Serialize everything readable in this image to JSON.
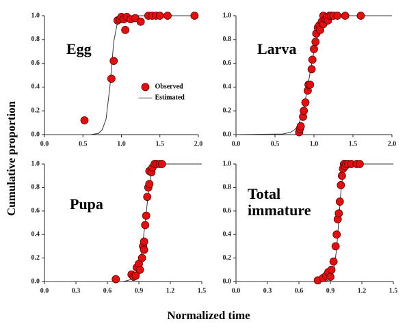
{
  "xlabel": "Normalized time",
  "ylabel": "Cumulative proportion",
  "chart_data": [
    {
      "type": "scatter",
      "label": "Egg",
      "legend": "center-right",
      "xlim": [
        0,
        2
      ],
      "ylim": [
        0,
        1
      ],
      "xticks": [
        {
          "value": 0,
          "label": "0.0"
        },
        {
          "value": 0.5,
          "label": "0.5"
        },
        {
          "value": 1,
          "label": "1.0"
        },
        {
          "value": 1.5,
          "label": "1.5"
        },
        {
          "value": 2,
          "label": "2.0"
        }
      ],
      "yticks": [
        {
          "value": 0,
          "label": "0.0"
        },
        {
          "value": 0.2,
          "label": "0.2"
        },
        {
          "value": 0.4,
          "label": "0.4"
        },
        {
          "value": 0.6,
          "label": "0.6"
        },
        {
          "value": 0.8,
          "label": "0.8"
        },
        {
          "value": 1,
          "label": "1.0"
        }
      ],
      "series": [
        {
          "name": "Observed",
          "color": "#e01010",
          "x": [
            0.52,
            0.87,
            0.9,
            0.95,
            0.98,
            1.0,
            1.03,
            1.05,
            1.07,
            1.12,
            1.18,
            1.25,
            1.35,
            1.4,
            1.45,
            1.5,
            1.6,
            1.95
          ],
          "values": [
            0.12,
            0.47,
            0.62,
            0.96,
            0.97,
            0.99,
            0.97,
            0.88,
            0.99,
            0.97,
            0.98,
            0.95,
            1.0,
            1.0,
            1.0,
            1.0,
            1.0,
            1.0
          ]
        },
        {
          "name": "Estimated",
          "color": "#333333",
          "x": [
            0,
            0.6,
            0.7,
            0.75,
            0.8,
            0.85,
            0.9,
            0.95,
            1.0,
            1.05,
            2.0
          ],
          "values": [
            0,
            0,
            0.01,
            0.04,
            0.13,
            0.4,
            0.78,
            0.95,
            0.99,
            1,
            1
          ]
        }
      ]
    },
    {
      "type": "scatter",
      "label": "Larva",
      "xlim": [
        0,
        2
      ],
      "ylim": [
        0,
        1
      ],
      "xticks": [
        {
          "value": 0,
          "label": "0.0"
        },
        {
          "value": 0.5,
          "label": "0.5"
        },
        {
          "value": 1,
          "label": "1.0"
        },
        {
          "value": 1.5,
          "label": "1.5"
        },
        {
          "value": 2,
          "label": "2.0"
        }
      ],
      "yticks": [
        {
          "value": 0,
          "label": "0.0"
        },
        {
          "value": 0.2,
          "label": "0.2"
        },
        {
          "value": 0.4,
          "label": "0.4"
        },
        {
          "value": 0.6,
          "label": "0.6"
        },
        {
          "value": 0.8,
          "label": "0.8"
        },
        {
          "value": 1,
          "label": "1.0"
        }
      ],
      "series": [
        {
          "name": "Observed",
          "color": "#e01010",
          "x": [
            0.81,
            0.82,
            0.83,
            0.86,
            0.87,
            0.89,
            0.92,
            0.93,
            0.95,
            0.97,
            0.98,
            1.0,
            1.02,
            1.03,
            1.05,
            1.07,
            1.08,
            1.1,
            1.12,
            1.12,
            1.15,
            1.17,
            1.18,
            1.2,
            1.22,
            1.25,
            1.3,
            1.4,
            1.6
          ],
          "values": [
            0.02,
            0.05,
            0.07,
            0.15,
            0.2,
            0.27,
            0.37,
            0.42,
            0.42,
            0.55,
            0.63,
            0.72,
            0.78,
            0.85,
            0.9,
            0.92,
            0.88,
            0.95,
            0.93,
            1.0,
            0.97,
            0.99,
            0.96,
            1.0,
            1.0,
            1.0,
            1.0,
            1.0,
            1.0
          ]
        },
        {
          "name": "Estimated",
          "color": "#333333",
          "x": [
            0,
            0.6,
            0.7,
            0.75,
            0.8,
            0.85,
            0.9,
            0.95,
            1.0,
            1.05,
            1.1,
            1.15,
            1.2,
            1.3,
            2.0
          ],
          "values": [
            0,
            0.005,
            0.02,
            0.04,
            0.08,
            0.17,
            0.33,
            0.52,
            0.7,
            0.84,
            0.93,
            0.97,
            0.99,
            1,
            1
          ]
        }
      ]
    },
    {
      "type": "scatter",
      "label": "Pupa",
      "xlim": [
        0,
        1.5
      ],
      "ylim": [
        0,
        1
      ],
      "xticks": [
        {
          "value": 0,
          "label": "0.0"
        },
        0.3,
        0.6,
        0.9,
        1.2,
        1.5
      ],
      "yticks": [
        {
          "value": 0,
          "label": "0.0"
        },
        0.2,
        0.4,
        0.6,
        0.8,
        {
          "value": 1,
          "label": "1.0"
        }
      ],
      "series": [
        {
          "name": "Observed",
          "color": "#e01010",
          "x": [
            0.68,
            0.83,
            0.85,
            0.87,
            0.88,
            0.9,
            0.91,
            0.93,
            0.94,
            0.95,
            0.95,
            0.96,
            0.97,
            0.98,
            0.99,
            1.0,
            1.0,
            1.02,
            1.03,
            1.05,
            1.07,
            1.1,
            1.12
          ],
          "values": [
            0.02,
            0.06,
            0.04,
            0.05,
            0.12,
            0.15,
            0.1,
            0.2,
            0.3,
            0.34,
            0.27,
            0.48,
            0.56,
            0.72,
            0.8,
            0.83,
            0.94,
            0.93,
            0.97,
            1.0,
            1.0,
            1.0,
            1.0
          ]
        },
        {
          "name": "Estimated",
          "color": "#333333",
          "x": [
            0,
            0.75,
            0.8,
            0.85,
            0.9,
            0.93,
            0.96,
            0.99,
            1.02,
            1.05,
            1.1,
            1.5
          ],
          "values": [
            0,
            0,
            0.01,
            0.03,
            0.12,
            0.27,
            0.5,
            0.75,
            0.92,
            0.98,
            1,
            1
          ]
        }
      ]
    },
    {
      "type": "scatter",
      "label": "Total immature",
      "xlim": [
        0,
        1.5
      ],
      "ylim": [
        0,
        1
      ],
      "xticks": [
        {
          "value": 0,
          "label": "0.0"
        },
        0.3,
        0.6,
        0.9,
        1.2,
        1.5
      ],
      "yticks": [
        {
          "value": 0,
          "label": "0.0"
        },
        0.2,
        0.4,
        0.6,
        0.8,
        {
          "value": 1,
          "label": "1.0"
        }
      ],
      "series": [
        {
          "name": "Observed",
          "color": "#e01010",
          "x": [
            0.78,
            0.83,
            0.86,
            0.88,
            0.9,
            0.91,
            0.93,
            0.95,
            0.96,
            0.97,
            0.98,
            0.99,
            1.0,
            1.01,
            1.02,
            1.03,
            1.04,
            1.05,
            1.07,
            1.1,
            1.15,
            1.18
          ],
          "values": [
            0.01,
            0.03,
            0.05,
            0.08,
            0.04,
            0.1,
            0.17,
            0.3,
            0.4,
            0.53,
            0.58,
            0.68,
            0.82,
            0.9,
            0.96,
            1.0,
            0.98,
            1.0,
            1.0,
            1.0,
            1.0,
            1.0
          ]
        },
        {
          "name": "Estimated",
          "color": "#333333",
          "x": [
            0,
            0.85,
            0.9,
            0.93,
            0.96,
            0.98,
            1.0,
            1.02,
            1.04,
            1.07,
            1.5
          ],
          "values": [
            0,
            0,
            0.02,
            0.08,
            0.28,
            0.52,
            0.76,
            0.92,
            0.98,
            1,
            1
          ]
        }
      ]
    }
  ]
}
